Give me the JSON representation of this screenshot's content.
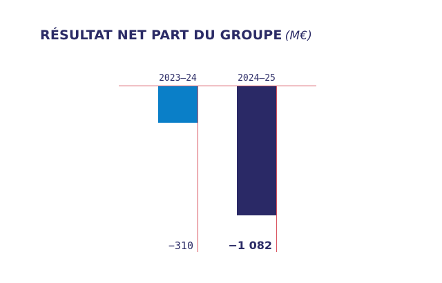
{
  "title": "RÉSULTAT NET PART DU GROUPE",
  "unit": "(M€)",
  "colors": {
    "bar_2023": "#0a7fc8",
    "bar_2024": "#2a2966",
    "guide": "#d9535f",
    "text": "#2b2b66"
  },
  "chart_data": {
    "type": "bar",
    "title": "RÉSULTAT NET PART DU GROUPE (M€)",
    "categories": [
      "2023–24",
      "2024–25"
    ],
    "values": [
      -310,
      -1082
    ],
    "data_labels": [
      "−310",
      "−1 082"
    ],
    "ylim": [
      -1082,
      0
    ],
    "xlabel": "",
    "ylabel": "",
    "grid": false,
    "legend": "none"
  }
}
